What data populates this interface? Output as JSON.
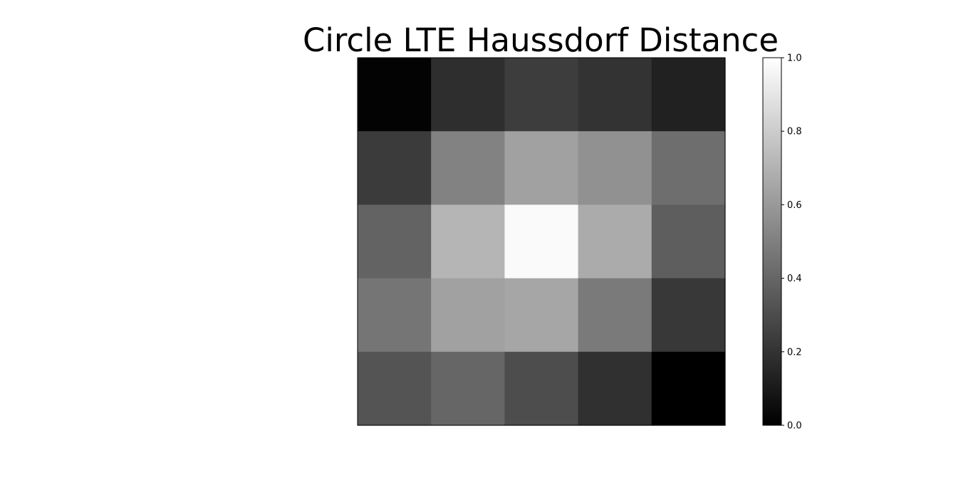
{
  "chart_data": {
    "type": "heatmap",
    "title": "Circle LTE Haussdorf Distance",
    "colormap": "gray",
    "colormap_stops": [
      "#000000",
      "#ffffff"
    ],
    "grid": false,
    "rows": 5,
    "cols": 5,
    "values": [
      [
        0.01,
        0.18,
        0.24,
        0.2,
        0.13
      ],
      [
        0.23,
        0.51,
        0.63,
        0.57,
        0.43
      ],
      [
        0.39,
        0.71,
        0.98,
        0.67,
        0.37
      ],
      [
        0.46,
        0.63,
        0.65,
        0.48,
        0.22
      ],
      [
        0.33,
        0.4,
        0.3,
        0.19,
        0.0
      ]
    ],
    "colorbar": {
      "range": [
        0.0,
        1.0
      ],
      "ticks": [
        0.0,
        0.2,
        0.4,
        0.6,
        0.8,
        1.0
      ],
      "tick_labels": [
        "0.0",
        "0.2",
        "0.4",
        "0.6",
        "0.8",
        "1.0"
      ]
    }
  }
}
